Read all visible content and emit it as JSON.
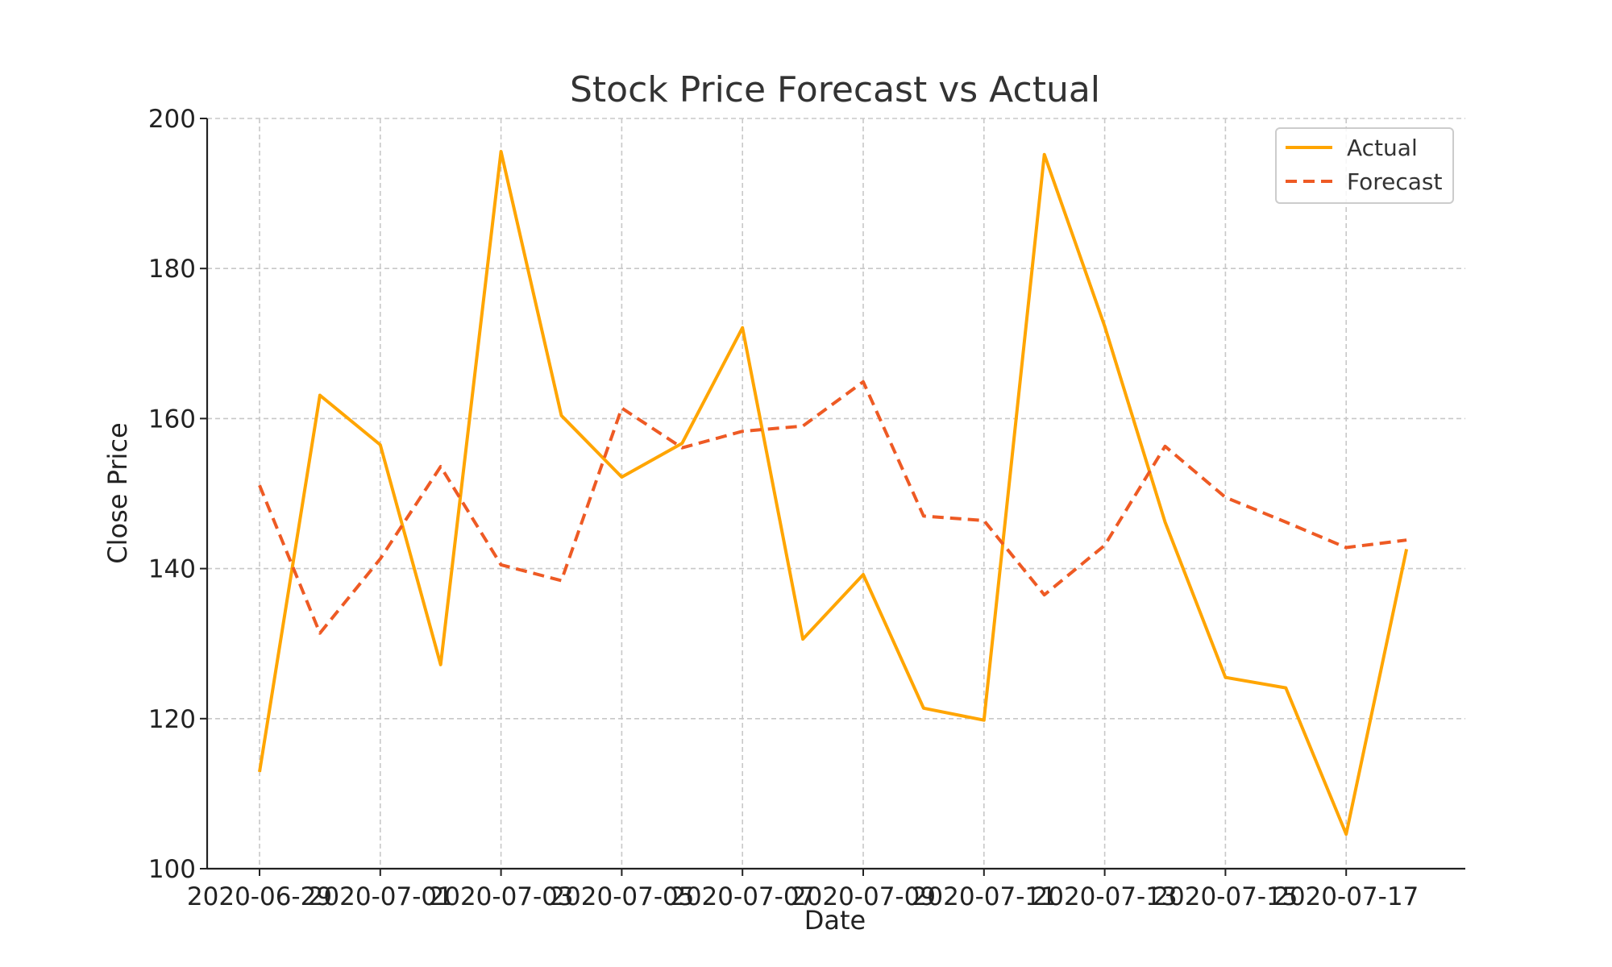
{
  "chart_data": {
    "type": "line",
    "title": "Stock Price Forecast vs Actual",
    "xlabel": "Date",
    "ylabel": "Close Price",
    "x": [
      "2020-06-29",
      "2020-06-30",
      "2020-07-01",
      "2020-07-02",
      "2020-07-03",
      "2020-07-04",
      "2020-07-05",
      "2020-07-06",
      "2020-07-07",
      "2020-07-08",
      "2020-07-09",
      "2020-07-10",
      "2020-07-11",
      "2020-07-12",
      "2020-07-13",
      "2020-07-14",
      "2020-07-15",
      "2020-07-16",
      "2020-07-17",
      "2020-07-18"
    ],
    "x_ticks": [
      "2020-06-29",
      "2020-07-01",
      "2020-07-03",
      "2020-07-05",
      "2020-07-07",
      "2020-07-09",
      "2020-07-11",
      "2020-07-13",
      "2020-07-15",
      "2020-07-17"
    ],
    "ylim": [
      100,
      200
    ],
    "y_ticks": [
      100,
      120,
      140,
      160,
      180,
      200
    ],
    "grid": true,
    "legend_position": "top-right",
    "series": [
      {
        "name": "Actual",
        "style": "solid",
        "color": "#ffa500",
        "values": [
          112.9,
          163.1,
          156.5,
          127.2,
          195.6,
          160.4,
          152.2,
          156.7,
          172.1,
          130.6,
          139.2,
          121.4,
          119.8,
          195.2,
          172.3,
          146.2,
          125.5,
          124.1,
          104.6,
          142.6
        ]
      },
      {
        "name": "Forecast",
        "style": "dashed",
        "color": "#ee5a24",
        "values": [
          151.1,
          131.4,
          141.3,
          153.6,
          140.5,
          138.4,
          161.4,
          156.1,
          158.3,
          159.0,
          164.9,
          147.0,
          146.4,
          136.5,
          143.1,
          156.3,
          149.5,
          146.2,
          142.8,
          143.8
        ]
      }
    ]
  }
}
